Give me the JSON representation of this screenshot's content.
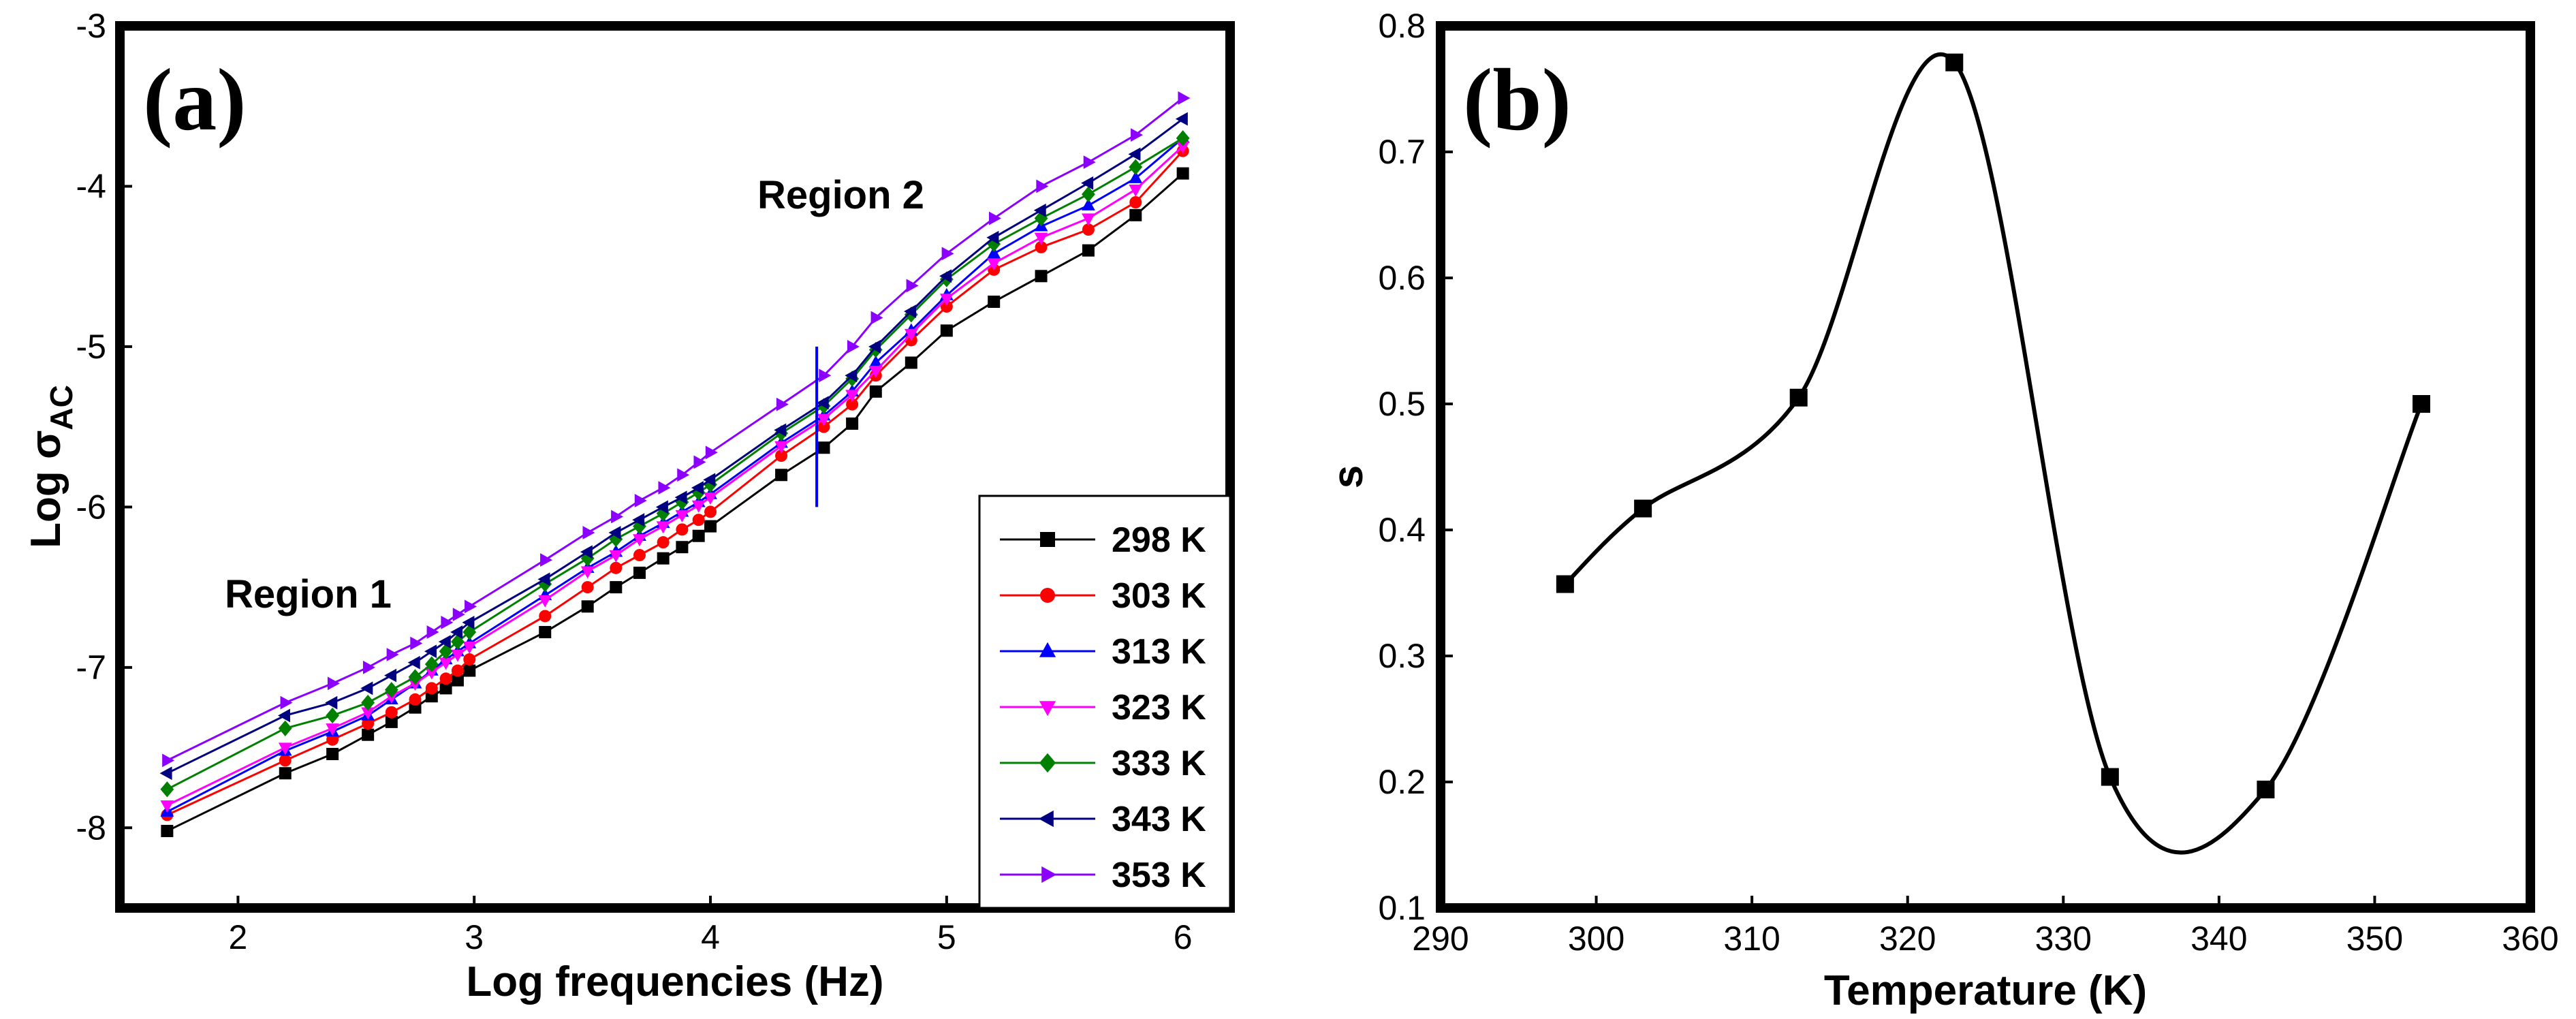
{
  "chart_data": [
    {
      "type": "line",
      "panel_label": "(a)",
      "xlabel": "Log frequencies (Hz)",
      "ylabel_main": "Log σ",
      "ylabel_sub": "AC",
      "xlim": [
        1.5,
        6.2
      ],
      "ylim": [
        -8.5,
        -3
      ],
      "xticks": [
        "2",
        "3",
        "4",
        "5",
        "6"
      ],
      "yticks": [
        "-3",
        "-4",
        "-5",
        "-6",
        "-7",
        "-8"
      ],
      "annotations": [
        "Region 1",
        "Region 2"
      ],
      "divider_x": 4.45,
      "divider_y": [
        -5.0,
        -6.0
      ],
      "legend_position": "bottom-right",
      "series": [
        {
          "name": "298 K",
          "color": "#000000",
          "marker": "square",
          "x": [
            1.7,
            2.2,
            2.4,
            2.55,
            2.65,
            2.75,
            2.82,
            2.88,
            2.93,
            2.98,
            3.3,
            3.48,
            3.6,
            3.7,
            3.8,
            3.88,
            3.95,
            4.0,
            4.3,
            4.48,
            4.6,
            4.7,
            4.85,
            5.0,
            5.2,
            5.4,
            5.6,
            5.8,
            6.0
          ],
          "y": [
            -8.02,
            -7.66,
            -7.54,
            -7.42,
            -7.34,
            -7.25,
            -7.18,
            -7.13,
            -7.08,
            -7.02,
            -6.78,
            -6.62,
            -6.5,
            -6.41,
            -6.32,
            -6.25,
            -6.18,
            -6.12,
            -5.8,
            -5.63,
            -5.48,
            -5.28,
            -5.1,
            -4.9,
            -4.72,
            -4.56,
            -4.4,
            -4.18,
            -3.92
          ]
        },
        {
          "name": "303 K",
          "color": "#ff0000",
          "marker": "circle",
          "x": [
            1.7,
            2.2,
            2.4,
            2.55,
            2.65,
            2.75,
            2.82,
            2.88,
            2.93,
            2.98,
            3.3,
            3.48,
            3.6,
            3.7,
            3.8,
            3.88,
            3.95,
            4.0,
            4.3,
            4.48,
            4.6,
            4.7,
            4.85,
            5.0,
            5.2,
            5.4,
            5.6,
            5.8,
            6.0
          ],
          "y": [
            -7.92,
            -7.58,
            -7.45,
            -7.35,
            -7.28,
            -7.2,
            -7.13,
            -7.07,
            -7.02,
            -6.95,
            -6.68,
            -6.5,
            -6.38,
            -6.3,
            -6.22,
            -6.14,
            -6.08,
            -6.03,
            -5.68,
            -5.5,
            -5.36,
            -5.18,
            -4.96,
            -4.75,
            -4.52,
            -4.38,
            -4.27,
            -4.1,
            -3.78
          ]
        },
        {
          "name": "313 K",
          "color": "#0000ff",
          "marker": "triangle-up",
          "x": [
            1.7,
            2.2,
            2.4,
            2.55,
            2.65,
            2.75,
            2.82,
            2.88,
            2.93,
            2.98,
            3.3,
            3.48,
            3.6,
            3.7,
            3.8,
            3.88,
            3.95,
            4.0,
            4.3,
            4.48,
            4.6,
            4.7,
            4.85,
            5.0,
            5.2,
            5.4,
            5.6,
            5.8,
            6.0
          ],
          "y": [
            -7.9,
            -7.52,
            -7.4,
            -7.3,
            -7.2,
            -7.1,
            -7.02,
            -6.95,
            -6.9,
            -6.85,
            -6.55,
            -6.38,
            -6.28,
            -6.18,
            -6.1,
            -6.03,
            -5.97,
            -5.92,
            -5.6,
            -5.43,
            -5.28,
            -5.1,
            -4.9,
            -4.68,
            -4.42,
            -4.25,
            -4.12,
            -3.95,
            -3.7
          ]
        },
        {
          "name": "323 K",
          "color": "#ff00ff",
          "marker": "triangle-down",
          "x": [
            1.7,
            2.2,
            2.4,
            2.55,
            2.65,
            2.75,
            2.82,
            2.88,
            2.93,
            2.98,
            3.3,
            3.48,
            3.6,
            3.7,
            3.8,
            3.88,
            3.95,
            4.0,
            4.3,
            4.48,
            4.6,
            4.7,
            4.85,
            5.0,
            5.2,
            5.4,
            5.6,
            5.8,
            6.0
          ],
          "y": [
            -7.86,
            -7.5,
            -7.38,
            -7.28,
            -7.18,
            -7.1,
            -7.03,
            -6.97,
            -6.92,
            -6.87,
            -6.58,
            -6.4,
            -6.3,
            -6.2,
            -6.12,
            -6.05,
            -5.99,
            -5.94,
            -5.62,
            -5.45,
            -5.3,
            -5.15,
            -4.92,
            -4.7,
            -4.48,
            -4.32,
            -4.2,
            -4.02,
            -3.75
          ]
        },
        {
          "name": "333 K",
          "color": "#008000",
          "marker": "diamond",
          "x": [
            1.7,
            2.2,
            2.4,
            2.55,
            2.65,
            2.75,
            2.82,
            2.88,
            2.93,
            2.98,
            3.3,
            3.48,
            3.6,
            3.7,
            3.8,
            3.88,
            3.95,
            4.0,
            4.3,
            4.48,
            4.6,
            4.7,
            4.85,
            5.0,
            5.2,
            5.4,
            5.6,
            5.8,
            6.0
          ],
          "y": [
            -7.76,
            -7.38,
            -7.3,
            -7.22,
            -7.14,
            -7.06,
            -6.98,
            -6.9,
            -6.84,
            -6.78,
            -6.48,
            -6.32,
            -6.2,
            -6.12,
            -6.04,
            -5.97,
            -5.91,
            -5.86,
            -5.54,
            -5.37,
            -5.2,
            -5.02,
            -4.8,
            -4.58,
            -4.36,
            -4.2,
            -4.05,
            -3.88,
            -3.7
          ]
        },
        {
          "name": "343 K",
          "color": "#000080",
          "marker": "triangle-left",
          "x": [
            1.7,
            2.2,
            2.4,
            2.55,
            2.65,
            2.75,
            2.82,
            2.88,
            2.93,
            2.98,
            3.3,
            3.48,
            3.6,
            3.7,
            3.8,
            3.88,
            3.95,
            4.0,
            4.3,
            4.48,
            4.6,
            4.7,
            4.85,
            5.0,
            5.2,
            5.4,
            5.6,
            5.8,
            6.0
          ],
          "y": [
            -7.66,
            -7.3,
            -7.22,
            -7.13,
            -7.05,
            -6.97,
            -6.9,
            -6.84,
            -6.78,
            -6.72,
            -6.45,
            -6.28,
            -6.16,
            -6.08,
            -6.0,
            -5.94,
            -5.88,
            -5.83,
            -5.52,
            -5.35,
            -5.18,
            -5.0,
            -4.78,
            -4.56,
            -4.32,
            -4.15,
            -3.98,
            -3.8,
            -3.58
          ]
        },
        {
          "name": "353 K",
          "color": "#8b00ff",
          "marker": "triangle-right",
          "x": [
            1.7,
            2.2,
            2.4,
            2.55,
            2.65,
            2.75,
            2.82,
            2.88,
            2.93,
            2.98,
            3.3,
            3.48,
            3.6,
            3.7,
            3.8,
            3.88,
            3.95,
            4.0,
            4.3,
            4.48,
            4.6,
            4.7,
            4.85,
            5.0,
            5.2,
            5.4,
            5.6,
            5.8,
            6.0
          ],
          "y": [
            -7.58,
            -7.22,
            -7.1,
            -7.0,
            -6.92,
            -6.85,
            -6.78,
            -6.72,
            -6.67,
            -6.62,
            -6.33,
            -6.16,
            -6.06,
            -5.96,
            -5.88,
            -5.8,
            -5.72,
            -5.66,
            -5.36,
            -5.18,
            -5.0,
            -4.82,
            -4.62,
            -4.42,
            -4.2,
            -4.0,
            -3.85,
            -3.68,
            -3.45
          ]
        }
      ]
    },
    {
      "type": "line",
      "panel_label": "(b)",
      "xlabel": "Temperature (K)",
      "ylabel": "s",
      "xlim": [
        290,
        360
      ],
      "ylim": [
        0.1,
        0.8
      ],
      "xticks": [
        "290",
        "300",
        "310",
        "320",
        "330",
        "340",
        "350",
        "360"
      ],
      "yticks": [
        "0.8",
        "0.7",
        "0.6",
        "0.5",
        "0.4",
        "0.3",
        "0.2",
        "0.1"
      ],
      "smooth": true,
      "series": [
        {
          "name": "s",
          "color": "#000000",
          "marker": "square",
          "x": [
            298,
            303,
            313,
            323,
            333,
            343,
            353
          ],
          "y": [
            0.357,
            0.417,
            0.505,
            0.771,
            0.204,
            0.194,
            0.5
          ]
        }
      ]
    }
  ]
}
